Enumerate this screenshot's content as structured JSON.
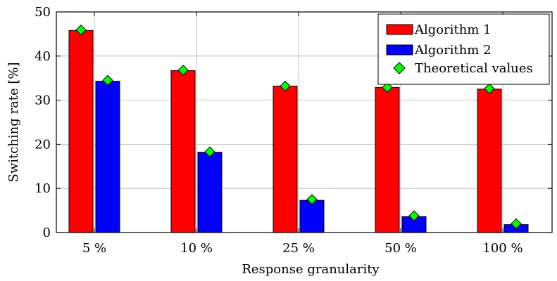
{
  "chart_data": {
    "type": "bar",
    "title": "",
    "xlabel": "Response granularity",
    "ylabel": "Switching rate [%]",
    "categories": [
      "5 %",
      "10 %",
      "25 %",
      "50 %",
      "100 %"
    ],
    "ylim": [
      0,
      50
    ],
    "yticks": [
      0,
      10,
      20,
      30,
      40,
      50
    ],
    "grid": true,
    "legend_position": "top-right",
    "series": [
      {
        "name": "Algorithm 1",
        "values": [
          45.8,
          36.7,
          33.2,
          32.9,
          32.5
        ],
        "color": "#ff0000"
      },
      {
        "name": "Algorithm 2",
        "values": [
          34.3,
          18.2,
          7.3,
          3.6,
          1.8
        ],
        "color": "#0000ff"
      }
    ],
    "theoretical": {
      "name": "Theoretical values",
      "values": [
        45.9,
        36.8,
        33.2,
        32.9,
        32.6,
        34.5,
        18.3,
        7.5,
        3.8,
        2.0
      ],
      "color": "#00ff00"
    }
  }
}
